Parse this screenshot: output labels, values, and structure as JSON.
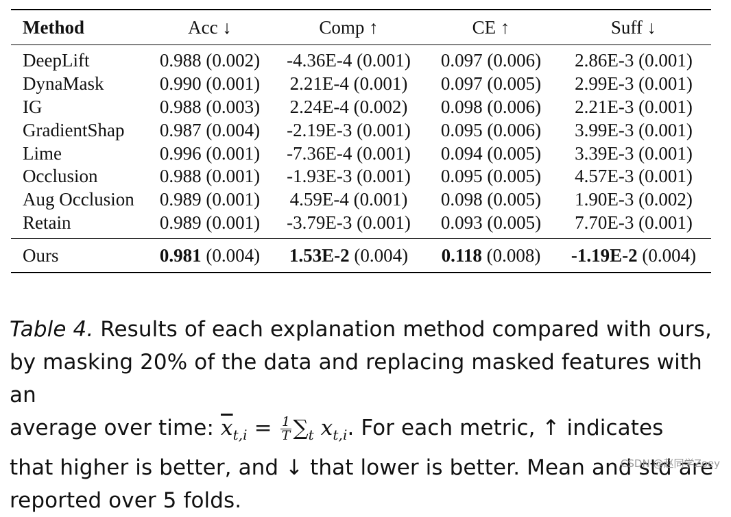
{
  "table": {
    "headers": [
      "Method",
      "Acc ↓",
      "Comp ↑",
      "CE ↑",
      "Suff ↓"
    ],
    "rows": [
      {
        "method": "DeepLift",
        "acc": "0.988 (0.002)",
        "comp": "-4.36E-4 (0.001)",
        "ce": "0.097 (0.006)",
        "suff": "2.86E-3 (0.001)"
      },
      {
        "method": "DynaMask",
        "acc": "0.990 (0.001)",
        "comp": "2.21E-4 (0.001)",
        "ce": "0.097 (0.005)",
        "suff": "2.99E-3 (0.001)"
      },
      {
        "method": "IG",
        "acc": "0.988 (0.003)",
        "comp": "2.24E-4 (0.002)",
        "ce": "0.098 (0.006)",
        "suff": "2.21E-3 (0.001)"
      },
      {
        "method": "GradientShap",
        "acc": "0.987 (0.004)",
        "comp": "-2.19E-3 (0.001)",
        "ce": "0.095 (0.006)",
        "suff": "3.99E-3 (0.001)"
      },
      {
        "method": "Lime",
        "acc": "0.996 (0.001)",
        "comp": "-7.36E-4 (0.001)",
        "ce": "0.094 (0.005)",
        "suff": "3.39E-3 (0.001)"
      },
      {
        "method": "Occlusion",
        "acc": "0.988 (0.001)",
        "comp": "-1.93E-3 (0.001)",
        "ce": "0.095 (0.005)",
        "suff": "4.57E-3 (0.001)"
      },
      {
        "method": "Aug Occlusion",
        "acc": "0.989 (0.001)",
        "comp": "4.59E-4 (0.001)",
        "ce": "0.098 (0.005)",
        "suff": "1.90E-3 (0.002)"
      },
      {
        "method": "Retain",
        "acc": "0.989 (0.001)",
        "comp": "-3.79E-3 (0.001)",
        "ce": "0.093 (0.005)",
        "suff": "7.70E-3 (0.001)"
      }
    ],
    "ours": {
      "method": "Ours",
      "acc_value": "0.981",
      "acc_std": " (0.004)",
      "comp_value": "1.53E-2",
      "comp_std": " (0.004)",
      "ce_value": "0.118",
      "ce_std": " (0.008)",
      "suff_value": "-1.19E-2",
      "suff_std": " (0.004)"
    }
  },
  "caption": {
    "label": "Table 4.",
    "line1": " Results of each explanation method compared with ours,",
    "line2": "by masking 20% of the data and replacing masked features with an",
    "line3_pre": "average over time: ",
    "math_xbar": "x",
    "math_sub": "t,i",
    "math_eq": " = ",
    "frac_num": "1",
    "frac_den": "T",
    "math_sum": "∑",
    "math_sum_sub": "t",
    "math_x": " x",
    "math_x_sub": "t,i",
    "line3_post": ". For each metric, ↑ indicates",
    "line4": "that higher is better, and ↓ that lower is better. Mean and std are",
    "line5": "reported over 5 folds."
  },
  "watermark": "CSDN @赵同学Zoey"
}
